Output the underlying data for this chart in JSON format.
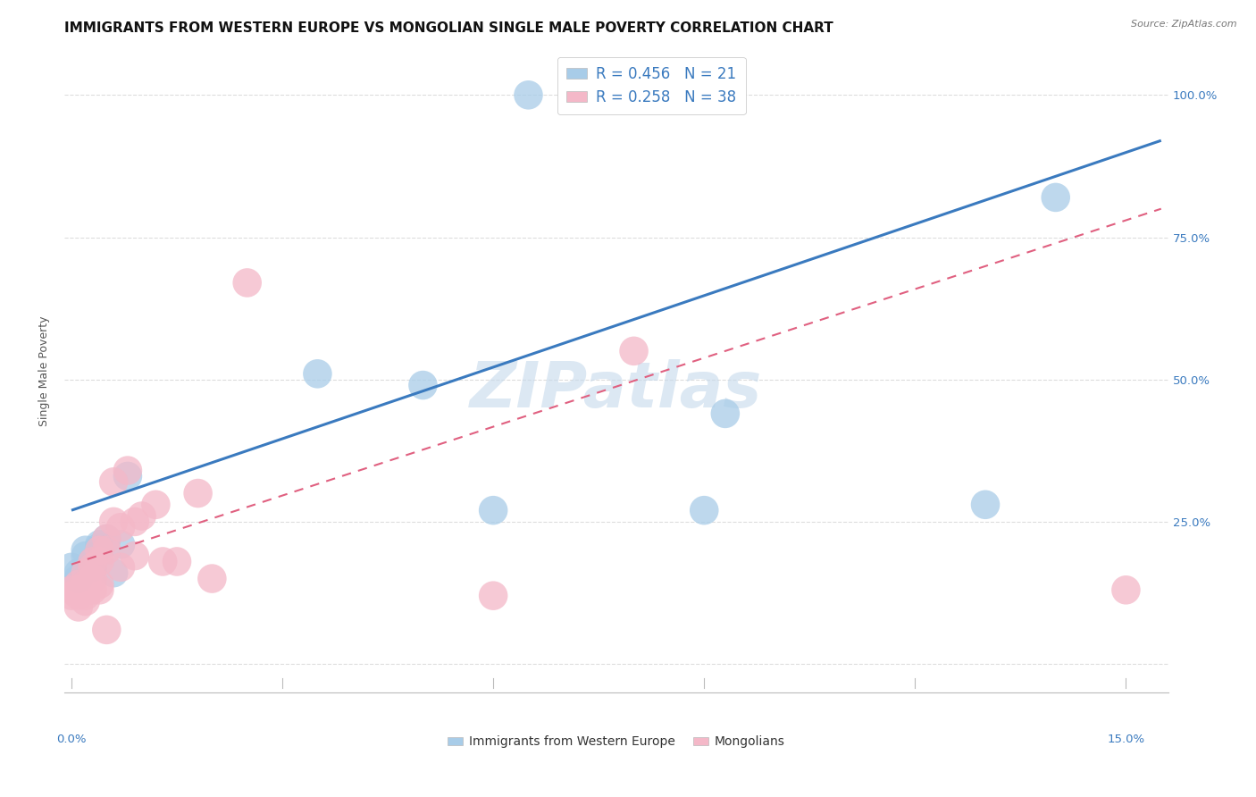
{
  "title": "IMMIGRANTS FROM WESTERN EUROPE VS MONGOLIAN SINGLE MALE POVERTY CORRELATION CHART",
  "source": "Source: ZipAtlas.com",
  "ylabel": "Single Male Poverty",
  "yticks": [
    0.0,
    0.25,
    0.5,
    0.75,
    1.0
  ],
  "ytick_labels": [
    "",
    "25.0%",
    "50.0%",
    "75.0%",
    "100.0%"
  ],
  "xtick_vals": [
    0.0,
    0.03,
    0.06,
    0.09,
    0.12,
    0.15
  ],
  "xlim": [
    -0.001,
    0.156
  ],
  "ylim": [
    -0.05,
    1.08
  ],
  "blue_R": "R = 0.456",
  "blue_N": "N = 21",
  "pink_R": "R = 0.258",
  "pink_N": "N = 38",
  "legend_label1": "Immigrants from Western Europe",
  "legend_label2": "Mongolians",
  "blue_color": "#a8cce8",
  "pink_color": "#f4b8c8",
  "blue_line_color": "#3a7abf",
  "pink_line_color": "#e06080",
  "blue_line_x0": 0.0,
  "blue_line_y0": 0.27,
  "blue_line_x1": 0.155,
  "blue_line_y1": 0.92,
  "pink_line_x0": 0.0,
  "pink_line_x1": 0.155,
  "pink_line_y0": 0.175,
  "pink_line_y1": 0.8,
  "blue_scatter_x": [
    0.0,
    0.001,
    0.001,
    0.002,
    0.002,
    0.003,
    0.003,
    0.004,
    0.004,
    0.005,
    0.006,
    0.007,
    0.008,
    0.035,
    0.05,
    0.06,
    0.065,
    0.09,
    0.093,
    0.13,
    0.14
  ],
  "blue_scatter_y": [
    0.17,
    0.16,
    0.15,
    0.19,
    0.2,
    0.17,
    0.18,
    0.21,
    0.205,
    0.22,
    0.16,
    0.21,
    0.33,
    0.51,
    0.49,
    0.27,
    1.0,
    0.27,
    0.44,
    0.28,
    0.82
  ],
  "pink_scatter_x": [
    0.0,
    0.0,
    0.001,
    0.001,
    0.001,
    0.001,
    0.002,
    0.002,
    0.002,
    0.002,
    0.003,
    0.003,
    0.003,
    0.003,
    0.004,
    0.004,
    0.004,
    0.004,
    0.005,
    0.005,
    0.005,
    0.006,
    0.006,
    0.007,
    0.007,
    0.008,
    0.009,
    0.009,
    0.01,
    0.012,
    0.013,
    0.015,
    0.018,
    0.02,
    0.025,
    0.06,
    0.08,
    0.15
  ],
  "pink_scatter_y": [
    0.13,
    0.12,
    0.14,
    0.13,
    0.12,
    0.1,
    0.16,
    0.14,
    0.12,
    0.11,
    0.18,
    0.17,
    0.15,
    0.13,
    0.2,
    0.18,
    0.14,
    0.13,
    0.22,
    0.2,
    0.06,
    0.32,
    0.25,
    0.24,
    0.17,
    0.34,
    0.25,
    0.19,
    0.26,
    0.28,
    0.18,
    0.18,
    0.3,
    0.15,
    0.67,
    0.12,
    0.55,
    0.13
  ],
  "watermark": "ZIPatlas",
  "bg_color": "#ffffff",
  "grid_color": "#dddddd",
  "title_fontsize": 11,
  "axis_fontsize": 9,
  "tick_fontsize": 9.5,
  "marker_size": 550
}
